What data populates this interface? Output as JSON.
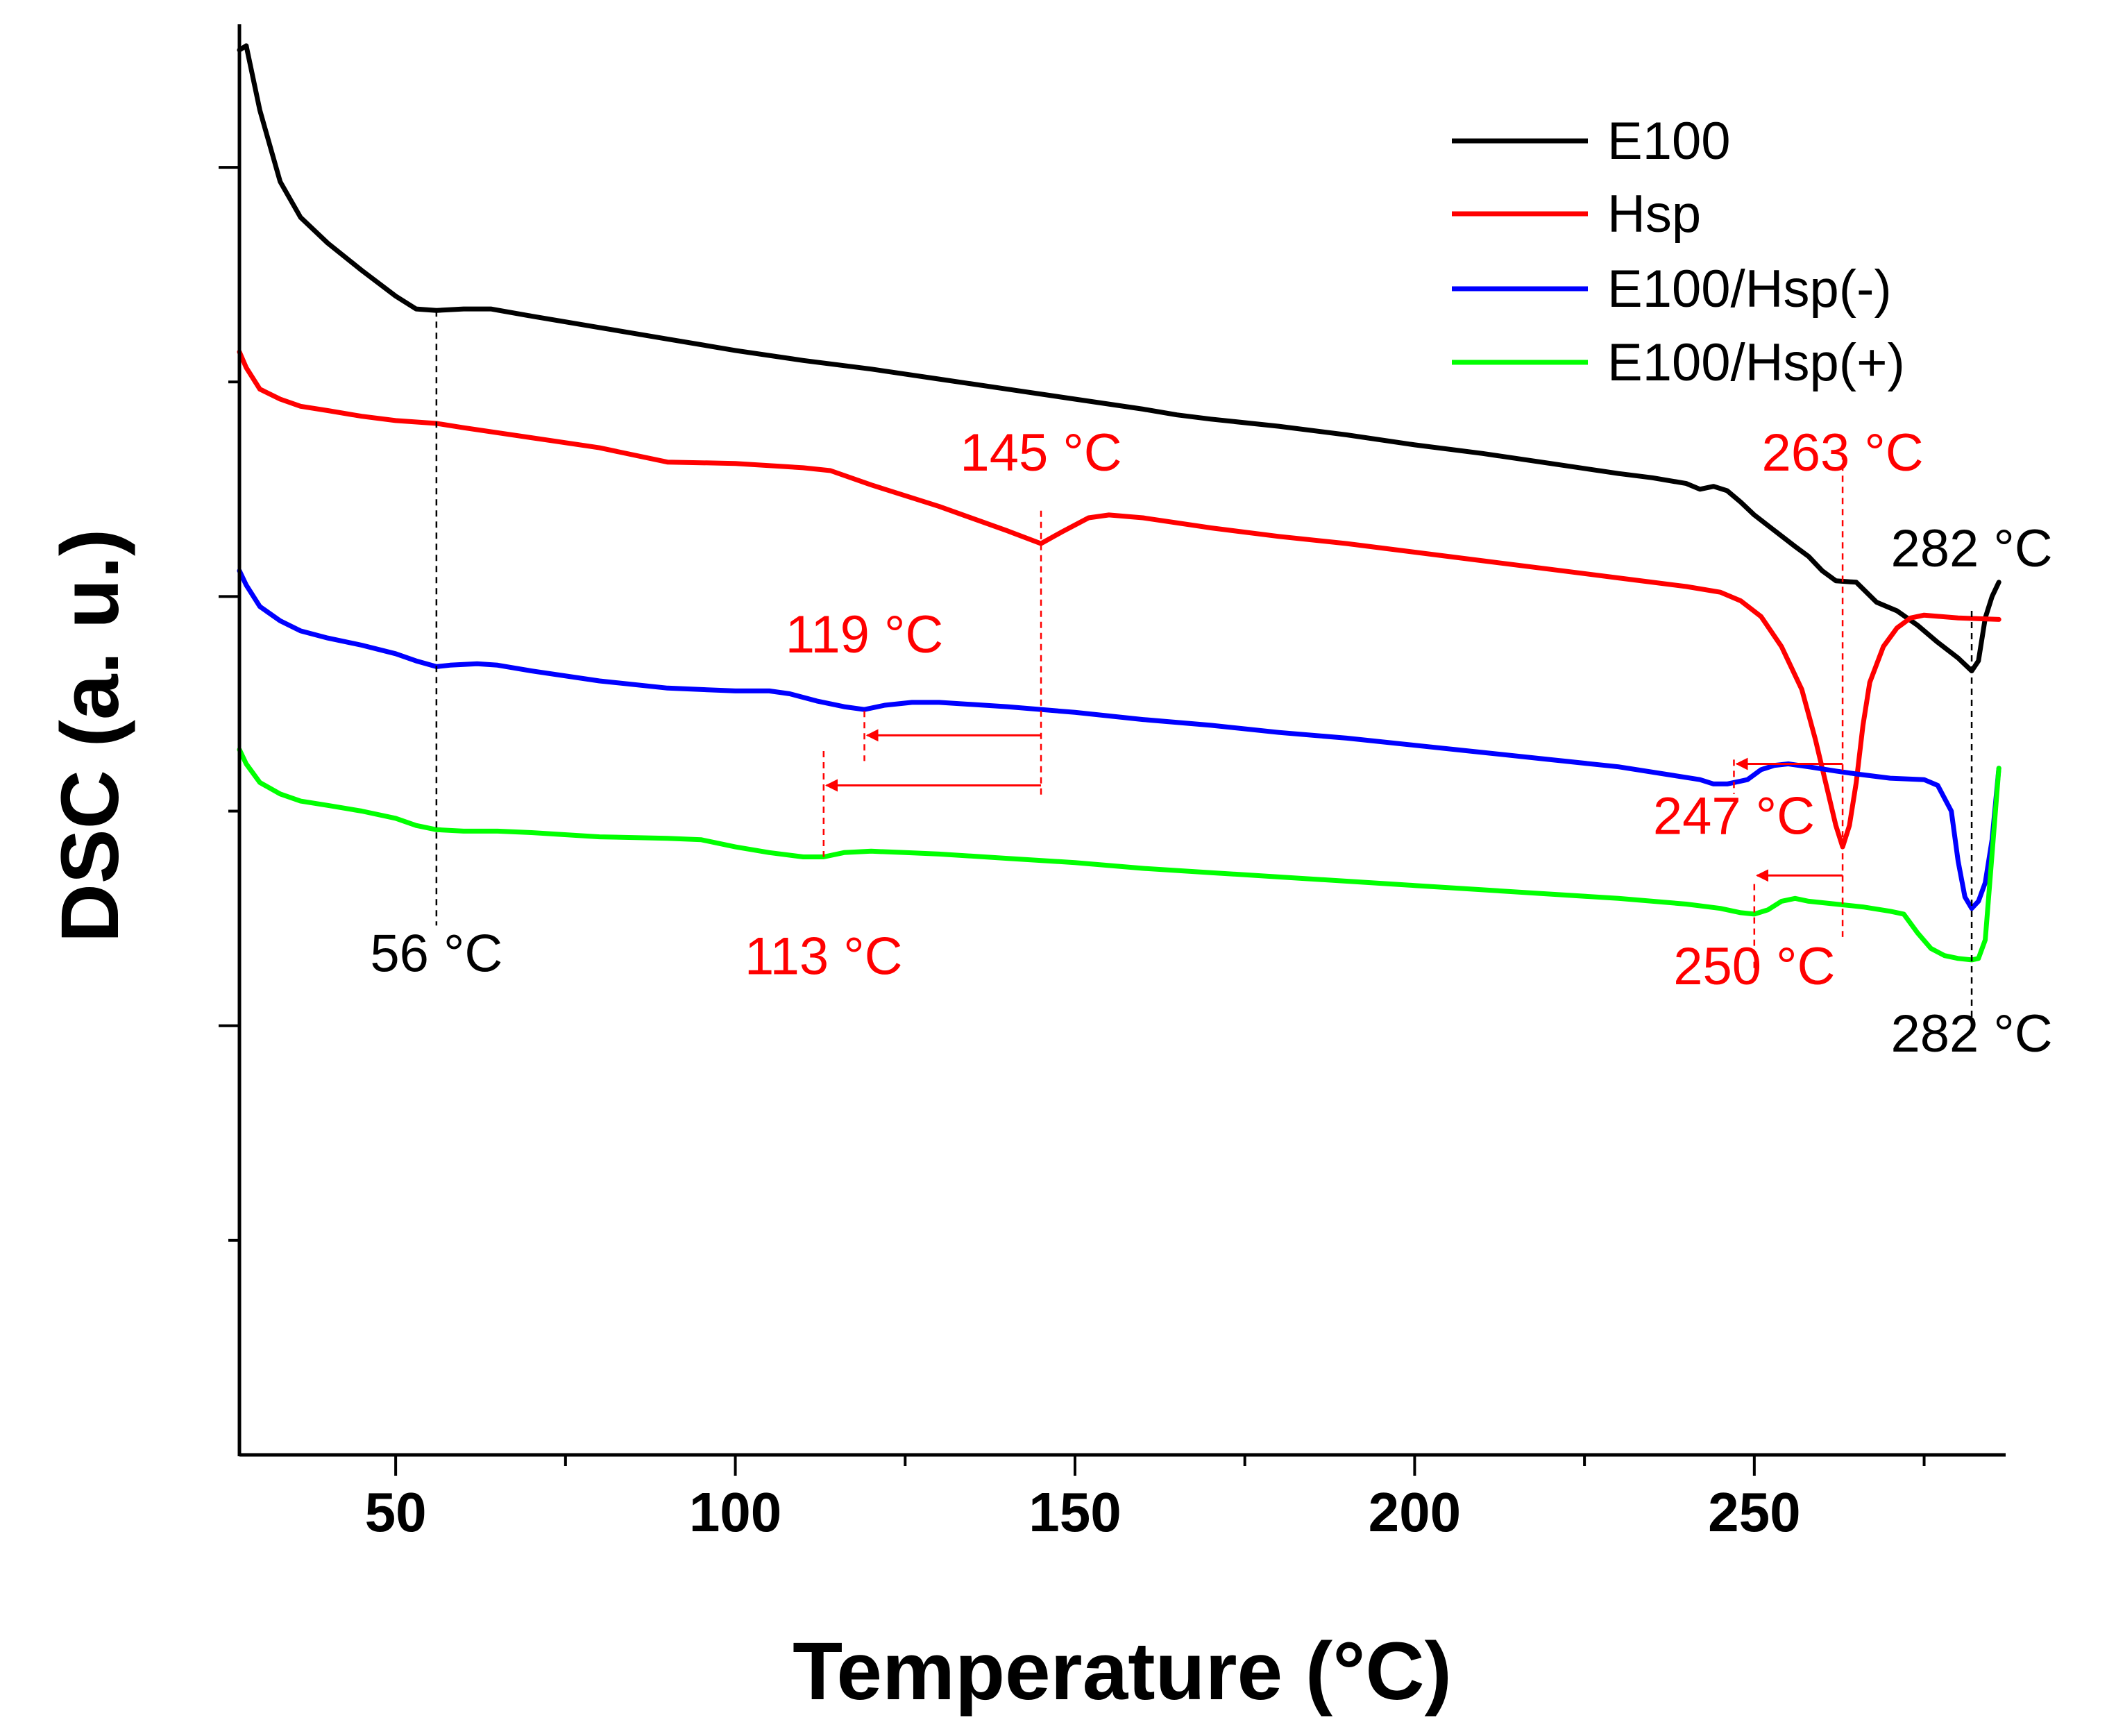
{
  "chart_data": {
    "type": "line",
    "title": "",
    "xlabel": "Temperature (°C)",
    "ylabel": "DSC (a. u.)",
    "xlim": [
      27,
      287
    ],
    "x_ticks": [
      50,
      100,
      150,
      200,
      250
    ],
    "y_tick_labels": "none",
    "grid": false,
    "legend_position": "top-right",
    "series": [
      {
        "name": "E100",
        "color": "#000000",
        "points": [
          [
            27,
            0.982
          ],
          [
            28,
            0.985
          ],
          [
            30,
            0.94
          ],
          [
            33,
            0.89
          ],
          [
            36,
            0.865
          ],
          [
            40,
            0.847
          ],
          [
            45,
            0.828
          ],
          [
            50,
            0.81
          ],
          [
            53,
            0.801
          ],
          [
            56,
            0.8
          ],
          [
            60,
            0.801
          ],
          [
            64,
            0.801
          ],
          [
            70,
            0.796
          ],
          [
            80,
            0.788
          ],
          [
            90,
            0.78
          ],
          [
            100,
            0.772
          ],
          [
            110,
            0.765
          ],
          [
            120,
            0.759
          ],
          [
            130,
            0.752
          ],
          [
            140,
            0.745
          ],
          [
            150,
            0.738
          ],
          [
            160,
            0.731
          ],
          [
            165,
            0.727
          ],
          [
            170,
            0.724
          ],
          [
            180,
            0.719
          ],
          [
            190,
            0.713
          ],
          [
            200,
            0.706
          ],
          [
            210,
            0.7
          ],
          [
            220,
            0.693
          ],
          [
            230,
            0.686
          ],
          [
            235,
            0.683
          ],
          [
            240,
            0.679
          ],
          [
            242,
            0.675
          ],
          [
            244,
            0.677
          ],
          [
            246,
            0.674
          ],
          [
            248,
            0.666
          ],
          [
            250,
            0.657
          ],
          [
            253,
            0.646
          ],
          [
            256,
            0.635
          ],
          [
            258,
            0.628
          ],
          [
            260,
            0.618
          ],
          [
            262,
            0.611
          ],
          [
            265,
            0.61
          ],
          [
            268,
            0.596
          ],
          [
            271,
            0.59
          ],
          [
            274,
            0.58
          ],
          [
            277,
            0.568
          ],
          [
            280,
            0.557
          ],
          [
            282,
            0.548
          ],
          [
            283,
            0.555
          ],
          [
            284,
            0.585
          ],
          [
            285,
            0.6
          ],
          [
            286,
            0.61
          ]
        ]
      },
      {
        "name": "Hsp",
        "color": "#ff0000",
        "points": [
          [
            27,
            0.771
          ],
          [
            28,
            0.76
          ],
          [
            30,
            0.745
          ],
          [
            33,
            0.738
          ],
          [
            36,
            0.733
          ],
          [
            40,
            0.73
          ],
          [
            45,
            0.726
          ],
          [
            50,
            0.723
          ],
          [
            56,
            0.721
          ],
          [
            60,
            0.718
          ],
          [
            70,
            0.711
          ],
          [
            80,
            0.704
          ],
          [
            90,
            0.694
          ],
          [
            100,
            0.693
          ],
          [
            110,
            0.69
          ],
          [
            114,
            0.688
          ],
          [
            120,
            0.678
          ],
          [
            130,
            0.663
          ],
          [
            140,
            0.646
          ],
          [
            145,
            0.637
          ],
          [
            148,
            0.645
          ],
          [
            152,
            0.655
          ],
          [
            155,
            0.657
          ],
          [
            160,
            0.655
          ],
          [
            170,
            0.648
          ],
          [
            180,
            0.642
          ],
          [
            190,
            0.637
          ],
          [
            200,
            0.631
          ],
          [
            210,
            0.625
          ],
          [
            220,
            0.619
          ],
          [
            230,
            0.613
          ],
          [
            240,
            0.607
          ],
          [
            245,
            0.603
          ],
          [
            248,
            0.597
          ],
          [
            251,
            0.586
          ],
          [
            254,
            0.565
          ],
          [
            257,
            0.535
          ],
          [
            259,
            0.5
          ],
          [
            261,
            0.46
          ],
          [
            262,
            0.44
          ],
          [
            263,
            0.425
          ],
          [
            264,
            0.44
          ],
          [
            265,
            0.47
          ],
          [
            266,
            0.51
          ],
          [
            267,
            0.54
          ],
          [
            269,
            0.565
          ],
          [
            271,
            0.578
          ],
          [
            273,
            0.585
          ],
          [
            275,
            0.587
          ],
          [
            280,
            0.585
          ],
          [
            286,
            0.584
          ]
        ]
      },
      {
        "name": "E100/Hsp(-)",
        "color": "#0000ff",
        "points": [
          [
            27,
            0.618
          ],
          [
            28,
            0.608
          ],
          [
            30,
            0.593
          ],
          [
            33,
            0.583
          ],
          [
            36,
            0.576
          ],
          [
            40,
            0.571
          ],
          [
            45,
            0.566
          ],
          [
            50,
            0.56
          ],
          [
            53,
            0.555
          ],
          [
            56,
            0.551
          ],
          [
            58,
            0.552
          ],
          [
            62,
            0.553
          ],
          [
            65,
            0.552
          ],
          [
            70,
            0.548
          ],
          [
            80,
            0.541
          ],
          [
            90,
            0.536
          ],
          [
            100,
            0.534
          ],
          [
            105,
            0.534
          ],
          [
            108,
            0.532
          ],
          [
            112,
            0.527
          ],
          [
            116,
            0.523
          ],
          [
            119,
            0.521
          ],
          [
            122,
            0.524
          ],
          [
            126,
            0.526
          ],
          [
            130,
            0.526
          ],
          [
            140,
            0.523
          ],
          [
            150,
            0.519
          ],
          [
            160,
            0.514
          ],
          [
            170,
            0.51
          ],
          [
            180,
            0.505
          ],
          [
            190,
            0.501
          ],
          [
            200,
            0.496
          ],
          [
            210,
            0.491
          ],
          [
            220,
            0.486
          ],
          [
            230,
            0.481
          ],
          [
            238,
            0.475
          ],
          [
            242,
            0.472
          ],
          [
            244,
            0.469
          ],
          [
            246,
            0.469
          ],
          [
            248,
            0.471
          ],
          [
            249,
            0.472
          ],
          [
            251,
            0.479
          ],
          [
            253,
            0.482
          ],
          [
            255,
            0.483
          ],
          [
            258,
            0.481
          ],
          [
            262,
            0.478
          ],
          [
            265,
            0.476
          ],
          [
            270,
            0.473
          ],
          [
            275,
            0.472
          ],
          [
            277,
            0.468
          ],
          [
            279,
            0.45
          ],
          [
            280,
            0.415
          ],
          [
            281,
            0.39
          ],
          [
            282,
            0.382
          ],
          [
            283,
            0.387
          ],
          [
            284,
            0.4
          ],
          [
            285,
            0.43
          ],
          [
            286,
            0.48
          ]
        ]
      },
      {
        "name": "E100/Hsp(+)",
        "color": "#00ff00",
        "points": [
          [
            27,
            0.493
          ],
          [
            28,
            0.483
          ],
          [
            30,
            0.47
          ],
          [
            33,
            0.462
          ],
          [
            36,
            0.457
          ],
          [
            40,
            0.454
          ],
          [
            45,
            0.45
          ],
          [
            50,
            0.445
          ],
          [
            53,
            0.44
          ],
          [
            56,
            0.437
          ],
          [
            60,
            0.436
          ],
          [
            65,
            0.436
          ],
          [
            70,
            0.435
          ],
          [
            80,
            0.432
          ],
          [
            90,
            0.431
          ],
          [
            95,
            0.43
          ],
          [
            100,
            0.425
          ],
          [
            105,
            0.421
          ],
          [
            110,
            0.418
          ],
          [
            113,
            0.418
          ],
          [
            116,
            0.421
          ],
          [
            120,
            0.422
          ],
          [
            125,
            0.421
          ],
          [
            130,
            0.42
          ],
          [
            140,
            0.417
          ],
          [
            150,
            0.414
          ],
          [
            160,
            0.41
          ],
          [
            170,
            0.407
          ],
          [
            180,
            0.404
          ],
          [
            190,
            0.401
          ],
          [
            200,
            0.398
          ],
          [
            210,
            0.395
          ],
          [
            220,
            0.392
          ],
          [
            230,
            0.389
          ],
          [
            240,
            0.385
          ],
          [
            245,
            0.382
          ],
          [
            248,
            0.379
          ],
          [
            250,
            0.378
          ],
          [
            252,
            0.381
          ],
          [
            254,
            0.387
          ],
          [
            256,
            0.389
          ],
          [
            258,
            0.387
          ],
          [
            262,
            0.385
          ],
          [
            266,
            0.383
          ],
          [
            270,
            0.38
          ],
          [
            272,
            0.378
          ],
          [
            274,
            0.365
          ],
          [
            276,
            0.354
          ],
          [
            278,
            0.349
          ],
          [
            280,
            0.347
          ],
          [
            282,
            0.346
          ],
          [
            283,
            0.347
          ],
          [
            284,
            0.36
          ],
          [
            285,
            0.42
          ],
          [
            286,
            0.48
          ]
        ]
      }
    ],
    "reference_lines": [
      {
        "x": 56,
        "y_from": 0.8,
        "y_to": 0.37,
        "color": "#000000"
      },
      {
        "x": 145,
        "y_from": 0.66,
        "y_to": 0.46,
        "color": "#ff0000"
      },
      {
        "x": 119,
        "y_from": 0.52,
        "y_to": 0.485,
        "color": "#ff0000"
      },
      {
        "x": 113,
        "y_from": 0.492,
        "y_to": 0.418,
        "color": "#ff0000"
      },
      {
        "x": 263,
        "y_from": 0.7,
        "y_to": 0.362,
        "color": "#ff0000"
      },
      {
        "x": 247,
        "y_from": 0.486,
        "y_to": 0.462,
        "color": "#ff0000"
      },
      {
        "x": 250,
        "y_from": 0.399,
        "y_to": 0.338,
        "color": "#ff0000"
      },
      {
        "x": 282,
        "y_from": 0.59,
        "y_to": 0.297,
        "color": "#000000"
      }
    ],
    "shift_arrows": [
      {
        "from_x": 145,
        "to_x": 119,
        "y": 0.503,
        "color": "#ff0000"
      },
      {
        "from_x": 145,
        "to_x": 113,
        "y": 0.468,
        "color": "#ff0000"
      },
      {
        "from_x": 263,
        "to_x": 247,
        "y": 0.483,
        "color": "#ff0000"
      },
      {
        "from_x": 263,
        "to_x": 250,
        "y": 0.405,
        "color": "#ff0000"
      }
    ],
    "annotations": [
      {
        "text": "56 °C",
        "x": 56,
        "y": 0.338,
        "color": "#000000"
      },
      {
        "text": "145 °C",
        "x": 145,
        "y": 0.688,
        "color": "#ff0000"
      },
      {
        "text": "119 °C",
        "x": 119,
        "y": 0.561,
        "color": "#ff0000"
      },
      {
        "text": "113 °C",
        "x": 113,
        "y": 0.336,
        "color": "#ff0000"
      },
      {
        "text": "263 °C",
        "x": 263,
        "y": 0.688,
        "color": "#ff0000"
      },
      {
        "text": "247 °C",
        "x": 247,
        "y": 0.434,
        "color": "#ff0000"
      },
      {
        "text": "250 °C",
        "x": 250,
        "y": 0.329,
        "color": "#ff0000"
      },
      {
        "text": "282 °C",
        "x": 282,
        "y": 0.621,
        "color": "#000000"
      },
      {
        "text": "282 °C",
        "x": 282,
        "y": 0.282,
        "color": "#000000"
      }
    ]
  }
}
